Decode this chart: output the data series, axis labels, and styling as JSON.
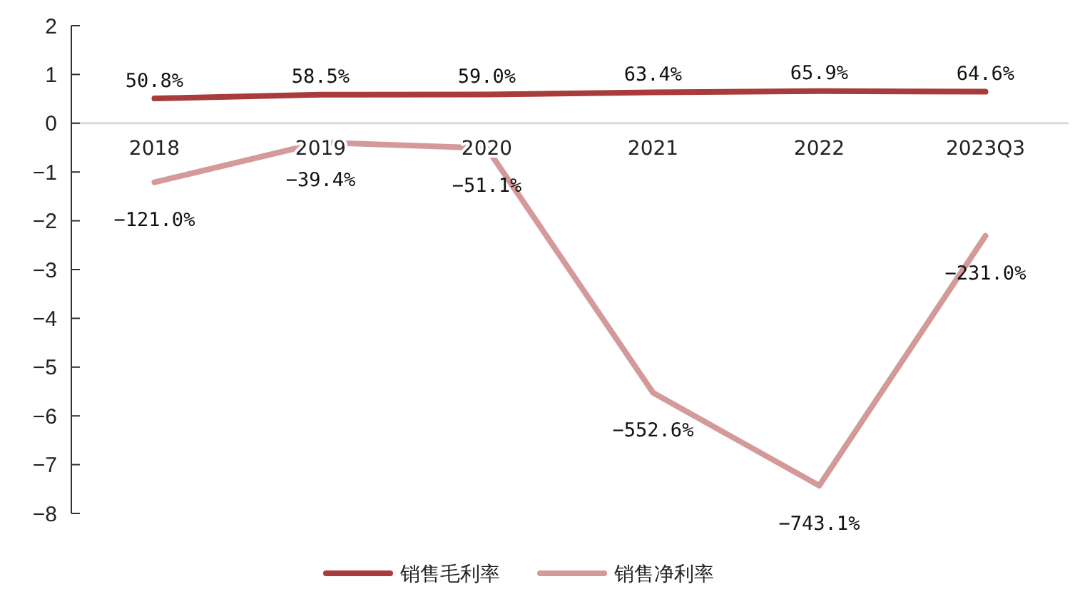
{
  "chart_data": {
    "type": "line",
    "categories": [
      "2018",
      "2019",
      "2020",
      "2021",
      "2022",
      "2023Q3"
    ],
    "ylim": [
      -8,
      2
    ],
    "yticks": [
      2,
      1,
      0,
      {
        "value": -1,
        "label": "−1"
      },
      {
        "value": -2,
        "label": "−2"
      },
      {
        "value": -3,
        "label": "−3"
      },
      {
        "value": -4,
        "label": "−4"
      },
      {
        "value": -5,
        "label": "−5"
      },
      {
        "value": -6,
        "label": "−6"
      },
      {
        "value": -7,
        "label": "−7"
      },
      {
        "value": -8,
        "label": "−8"
      }
    ],
    "series": [
      {
        "name": "销售毛利率",
        "color": "#a83c3c",
        "values": [
          0.508,
          0.585,
          0.59,
          0.634,
          0.659,
          0.646
        ],
        "value_labels": [
          "50.8%",
          "58.5%",
          "59.0%",
          "63.4%",
          "65.9%",
          "64.6%"
        ]
      },
      {
        "name": "销售净利率",
        "color": "#d49a9a",
        "values": [
          -1.21,
          -0.394,
          -0.511,
          -5.526,
          -7.431,
          -2.31
        ],
        "value_labels": [
          "−121.0%",
          "−39.4%",
          "−51.1%",
          "−552.6%",
          "−743.1%",
          "−231.0%"
        ]
      }
    ],
    "legend": "bottom",
    "marker": "none",
    "line_style": "solid",
    "grid": false
  }
}
